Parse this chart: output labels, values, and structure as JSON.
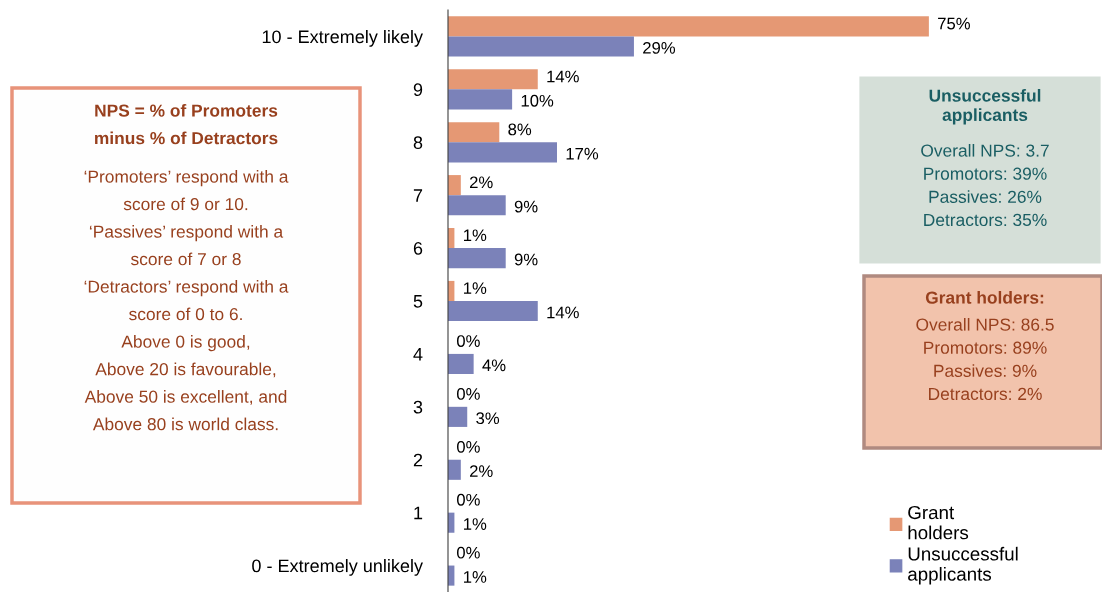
{
  "chart_data": {
    "type": "bar",
    "orientation": "horizontal",
    "categories": [
      "10 - Extremely likely",
      "9",
      "8",
      "7",
      "6",
      "5",
      "4",
      "3",
      "2",
      "1",
      "0 - Extremely unlikely"
    ],
    "series": [
      {
        "name": "Grant holders",
        "color": "#e59874",
        "values": [
          75,
          14,
          8,
          2,
          1,
          1,
          0,
          0,
          0,
          0,
          0
        ],
        "value_labels": [
          "75%",
          "14%",
          "8%",
          "2%",
          "1%",
          "1%",
          "0%",
          "0%",
          "0%",
          "0%",
          "0%"
        ]
      },
      {
        "name": "Unsuccessful applicants",
        "color": "#7b82b9",
        "values": [
          29,
          10,
          17,
          9,
          9,
          14,
          4,
          3,
          2,
          1,
          1
        ],
        "value_labels": [
          "29%",
          "10%",
          "17%",
          "9%",
          "9%",
          "14%",
          "4%",
          "3%",
          "2%",
          "1%",
          "1%"
        ]
      }
    ],
    "xlim": [
      0,
      102
    ],
    "tick_labels": "y",
    "legend": "bottom right",
    "grid": false,
    "annotations": [
      "NPS = % of Promoters\nminus % of Detractors",
      "‘Promoters’ respond with a\nscore of 9 or 10.\n‘Passives’ respond with a\nscore of 7 or 8\n‘Detractors’ respond with a\nscore of 0 to 6.\nAbove 0 is good,\nAbove 20 is favourable,\nAbove 50 is excellent, and\nAbove 80 is world class.",
      "Unsuccessful\napplicants",
      "Overall NPS: 3.7\nPromotors: 39%\nPassives: 26%\nDetractors: 35%",
      "Grant holders:",
      "Overall NPS: 86.5\nPromotors: 89%\nPassives: 9%\nDetractors: 2%"
    ]
  }
}
